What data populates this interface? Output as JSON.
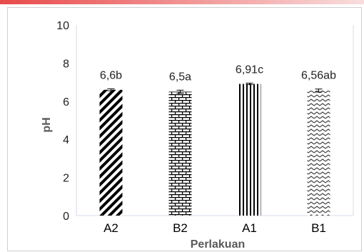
{
  "chart_data": {
    "type": "bar",
    "categories": [
      "A2",
      "B2",
      "A1",
      "B1"
    ],
    "values": [
      6.6,
      6.5,
      6.91,
      6.56
    ],
    "data_labels": [
      "6,6b",
      "6,5a",
      "6,91c",
      "6,56ab"
    ],
    "error": [
      0.05,
      0.08,
      0.04,
      0.08
    ],
    "patterns": [
      "diagonal-stripes",
      "bricks",
      "vertical-lines",
      "zigzag"
    ],
    "xlabel": "Perlakuan",
    "ylabel": "pH",
    "ylim": [
      0,
      10
    ],
    "yticks": [
      0,
      2,
      4,
      6,
      8,
      10
    ],
    "grid": false,
    "colors": {
      "bar_pattern": "#000000",
      "axis": "#d6dce8",
      "tick_text": "#222222",
      "label_text": "#595959"
    }
  }
}
